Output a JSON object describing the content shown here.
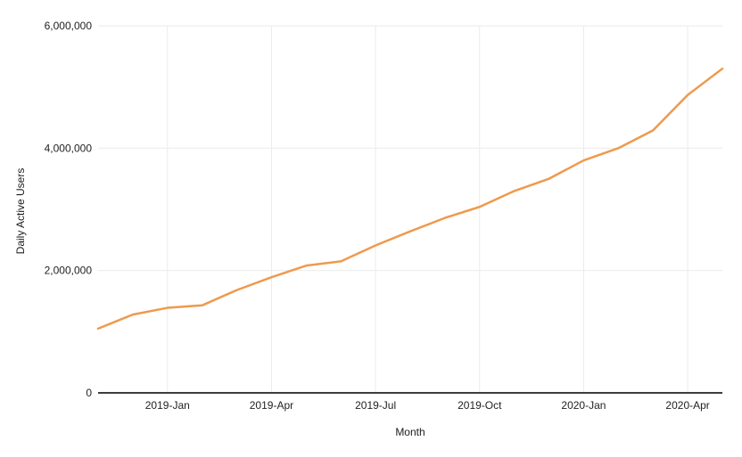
{
  "chart_data": {
    "type": "line",
    "title": "",
    "xlabel": "Month",
    "ylabel": "Daily Active Users",
    "x": [
      "2018-Nov",
      "2018-Dec",
      "2019-Jan",
      "2019-Feb",
      "2019-Mar",
      "2019-Apr",
      "2019-May",
      "2019-Jun",
      "2019-Jul",
      "2019-Aug",
      "2019-Sep",
      "2019-Oct",
      "2019-Nov",
      "2019-Dec",
      "2020-Jan",
      "2020-Feb",
      "2020-Mar",
      "2020-Apr",
      "2020-May"
    ],
    "series": [
      {
        "name": "Daily Active Users",
        "values": [
          1050000,
          1280000,
          1390000,
          1430000,
          1680000,
          1890000,
          2080000,
          2150000,
          2410000,
          2640000,
          2860000,
          3040000,
          3300000,
          3500000,
          3800000,
          4000000,
          4290000,
          4870000,
          5300000
        ]
      }
    ],
    "x_tick_labels": [
      "2019-Jan",
      "2019-Apr",
      "2019-Jul",
      "2019-Oct",
      "2020-Jan",
      "2020-Apr"
    ],
    "y_tick_labels": [
      "0",
      "2,000,000",
      "4,000,000",
      "6,000,000"
    ],
    "y_tick_values": [
      0,
      2000000,
      4000000,
      6000000
    ],
    "ylim": [
      0,
      6000000
    ],
    "grid": true,
    "legend": "none"
  },
  "colors": {
    "line": "#ee9a4d",
    "grid": "#ebebeb",
    "axis_line": "#3d3d3d",
    "text": "#222222",
    "background": "#ffffff"
  }
}
